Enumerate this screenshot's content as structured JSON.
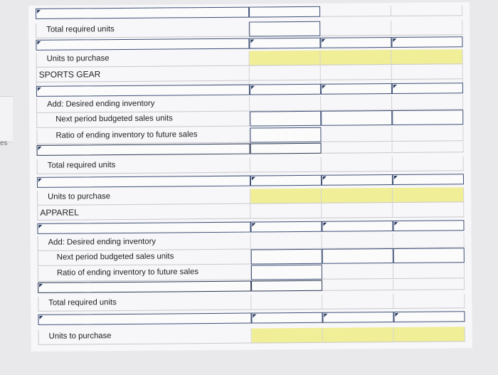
{
  "edge_text": "es",
  "rows": {
    "total_required_1": "Total required units",
    "units_purchase_1": "Units to purchase",
    "section_sports": "SPORTS GEAR",
    "desired_ending_1": "Add: Desired ending inventory",
    "next_period_1": "Next period budgeted sales units",
    "ratio_1": "Ratio of ending inventory to future sales",
    "total_required_2": "Total required units",
    "units_purchase_2": "Units to purchase",
    "section_apparel": "APPAREL",
    "desired_ending_2": "Add: Desired ending inventory",
    "next_period_2": "Next period budgeted sales units",
    "ratio_2": "Ratio of ending inventory to future sales",
    "total_required_3": "Total required units",
    "units_purchase_3": "Units to purchase"
  },
  "colors": {
    "input_border": "#3c4e74",
    "highlight": "#f0ee96",
    "background": "#e9e9ec"
  }
}
